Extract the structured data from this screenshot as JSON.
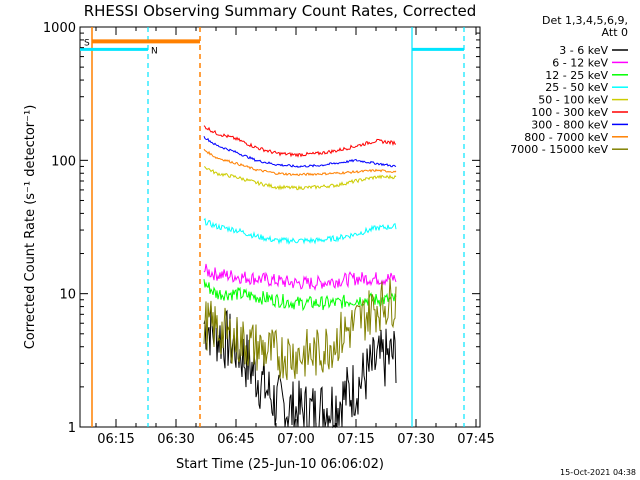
{
  "chart_data": {
    "type": "line",
    "title": "RHESSI Observing Summary Count Rates, Corrected",
    "xlabel": "Start Time (25-Jun-10 06:06:02)",
    "ylabel": "Corrected Count Rate (s⁻¹ detector⁻¹)",
    "y_scale": "log",
    "ylim": [
      1,
      1000
    ],
    "xlim": [
      "06:06",
      "07:46"
    ],
    "x_ticks": [
      "06:15",
      "06:30",
      "06:45",
      "07:00",
      "07:15",
      "07:30",
      "07:45"
    ],
    "y_ticks": [
      "1",
      "10",
      "100",
      "1000"
    ],
    "legend_header": [
      "Det 1,3,4,5,6,9,",
      "Att 0"
    ],
    "legend_position": "right",
    "footer": "15-Oct-2021 04:38",
    "flag_labels": {
      "s": "S",
      "n": "N"
    },
    "x_minutes": [
      37,
      40,
      45,
      50,
      55,
      60,
      65,
      70,
      75,
      80,
      85
    ],
    "series": [
      {
        "name": "3 - 6 keV",
        "color": "#000000",
        "values": [
          6,
          5,
          4,
          2.5,
          1.5,
          1.3,
          1.3,
          1.5,
          2,
          3,
          3.5
        ]
      },
      {
        "name": "6 - 12 keV",
        "color": "#ff00ff",
        "values": [
          15,
          14,
          13.5,
          13,
          12.5,
          12,
          12,
          12.5,
          13,
          13,
          13
        ]
      },
      {
        "name": "12 - 25 keV",
        "color": "#00ff00",
        "values": [
          12,
          10,
          10,
          9.5,
          9,
          8.5,
          8.5,
          8.5,
          9,
          9,
          9
        ]
      },
      {
        "name": "25 - 50 keV",
        "color": "#00ffff",
        "values": [
          35,
          32,
          30,
          27,
          25,
          25,
          25,
          26,
          28,
          31,
          32
        ]
      },
      {
        "name": "50 - 100 keV",
        "color": "#cccc00",
        "values": [
          90,
          80,
          75,
          68,
          63,
          62,
          63,
          65,
          70,
          75,
          75
        ]
      },
      {
        "name": "100 - 300 keV",
        "color": "#ff0000",
        "values": [
          180,
          160,
          145,
          125,
          113,
          110,
          112,
          118,
          128,
          140,
          135
        ]
      },
      {
        "name": "300 - 800 keV",
        "color": "#0000ff",
        "values": [
          150,
          130,
          115,
          100,
          93,
          90,
          91,
          95,
          100,
          95,
          90
        ]
      },
      {
        "name": "800 - 7000 keV",
        "color": "#ff8000",
        "values": [
          120,
          105,
          95,
          85,
          80,
          78,
          79,
          80,
          82,
          84,
          82
        ]
      },
      {
        "name": "7000 - 15000 keV",
        "color": "#808000",
        "values": [
          6,
          5.5,
          4.5,
          4,
          3.5,
          3.5,
          3.5,
          4.5,
          6,
          8,
          9
        ]
      }
    ],
    "orange_flag": {
      "start": "06:09",
      "end": "06:36",
      "value": 780
    },
    "cyan_flags": [
      {
        "start": "06:06",
        "end": "06:23",
        "value": 680
      },
      {
        "start": "07:29",
        "end": "07:42",
        "value": 680
      }
    ],
    "orange_marker_lines": [
      "06:09",
      "06:36"
    ],
    "cyan_marker_lines": [
      "06:23",
      "07:29",
      "07:42"
    ],
    "grid": false
  }
}
